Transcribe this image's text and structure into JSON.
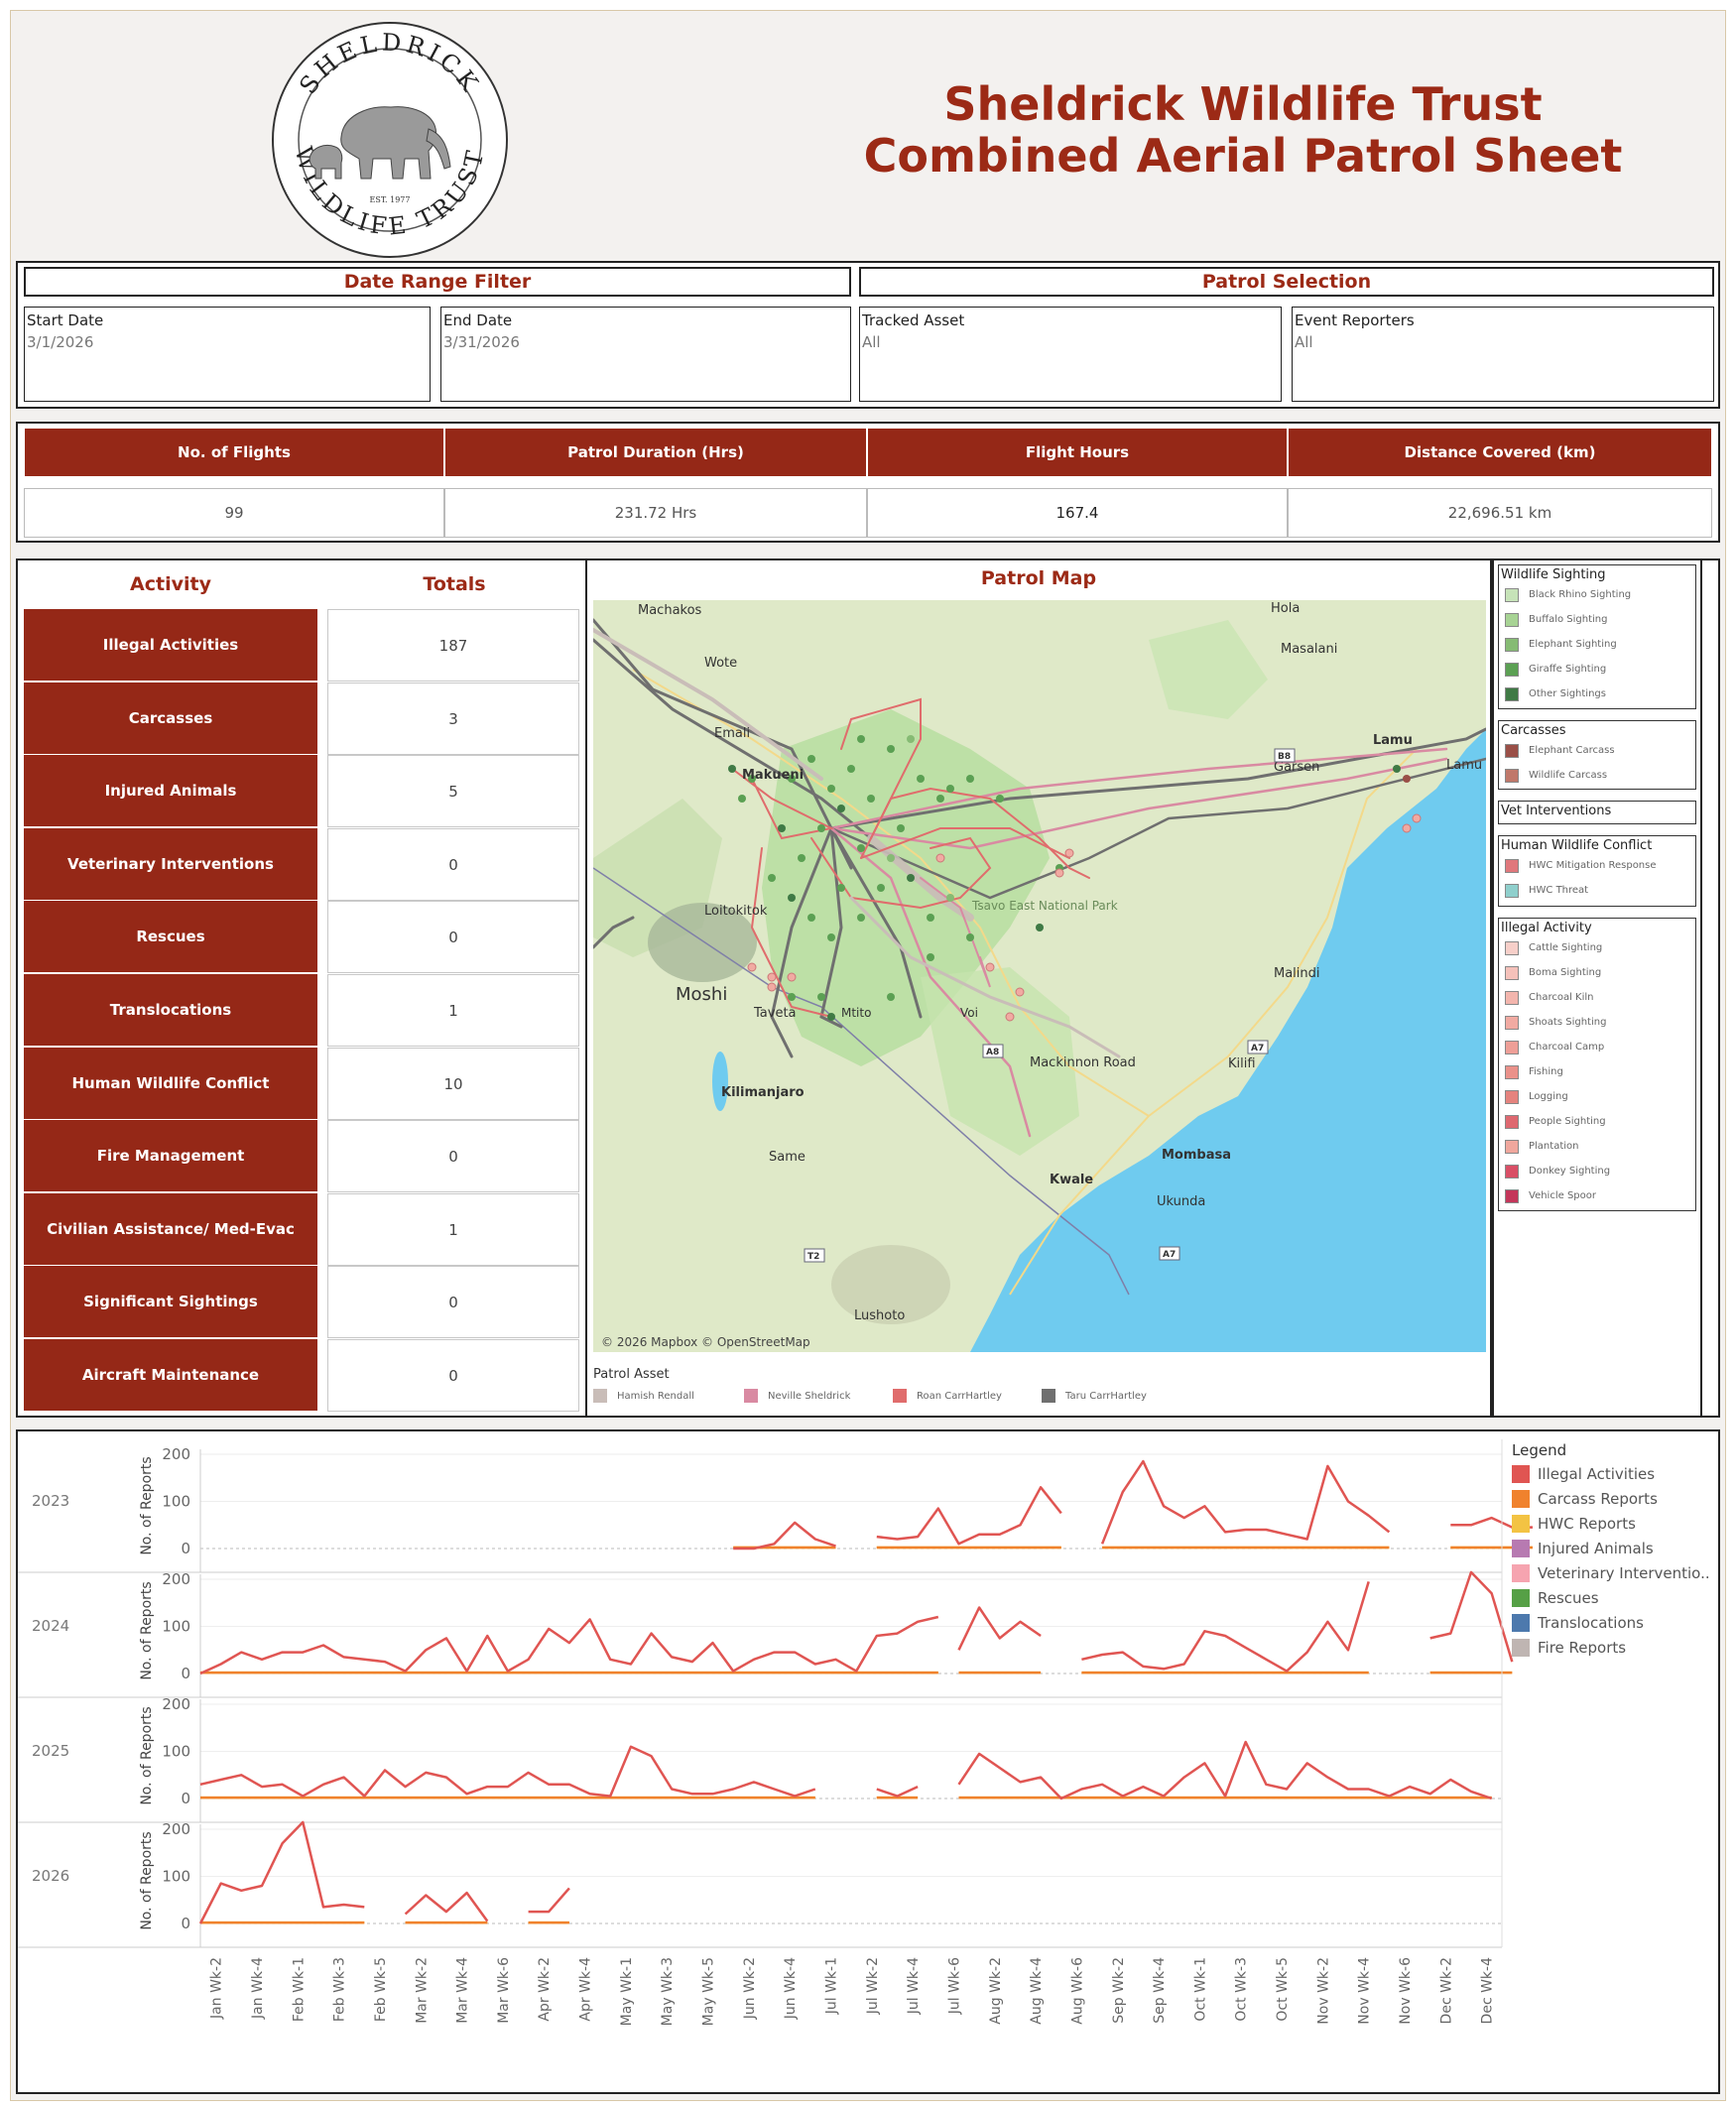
{
  "header": {
    "title_line1": "Sheldrick Wildlife Trust",
    "title_line2": "Combined Aerial Patrol Sheet",
    "logo_text_top": "SHELDRICK",
    "logo_text_bottom": "WILDLIFE TRUST",
    "logo_est": "EST. 1977"
  },
  "date_filter": {
    "title": "Date Range Filter",
    "start_label": "Start Date",
    "start_value": "3/1/2026",
    "end_label": "End Date",
    "end_value": "3/31/2026"
  },
  "patrol_selection": {
    "title": "Patrol Selection",
    "asset_label": "Tracked Asset",
    "asset_value": "All",
    "reporters_label": "Event Reporters",
    "reporters_value": "All"
  },
  "kpis": [
    {
      "label": "No. of Flights",
      "value": "99"
    },
    {
      "label": "Patrol Duration (Hrs)",
      "value": "231.72 Hrs"
    },
    {
      "label": "Flight Hours",
      "value": "167.4"
    },
    {
      "label": "Distance Covered (km)",
      "value": "22,696.51 km"
    }
  ],
  "activity_table": {
    "col_activity": "Activity",
    "col_totals": "Totals",
    "rows": [
      {
        "label": "Illegal Activities",
        "total": "187"
      },
      {
        "label": "Carcasses",
        "total": "3"
      },
      {
        "label": "Injured Animals",
        "total": "5"
      },
      {
        "label": "Veterinary Interventions",
        "total": "0"
      },
      {
        "label": "Rescues",
        "total": "0"
      },
      {
        "label": "Translocations",
        "total": "1"
      },
      {
        "label": "Human Wildlife Conflict",
        "total": "10"
      },
      {
        "label": "Fire Management",
        "total": "0"
      },
      {
        "label": "Civilian Assistance/ Med-Evac",
        "total": "1"
      },
      {
        "label": "Significant Sightings",
        "total": "0"
      },
      {
        "label": "Aircraft Maintenance",
        "total": "0"
      }
    ]
  },
  "map": {
    "title": "Patrol Map",
    "attribution": "© 2026 Mapbox © OpenStreetMap",
    "places": [
      "Machakos",
      "Wote",
      "Emali",
      "Makueni",
      "Loitokitok",
      "Moshi",
      "Taveta",
      "Kilimanjaro",
      "Same",
      "Mackinnon Road",
      "Kwale",
      "Mombasa",
      "Ukunda",
      "Lushoto",
      "Malindi",
      "Kilifi",
      "Garsen",
      "Lamu",
      "Lamu",
      "Hola",
      "Masalani",
      "Tsavo East National Park",
      "Mtito",
      "Voi"
    ],
    "road_shields": [
      "B8",
      "A7",
      "A7",
      "A8",
      "T2"
    ],
    "asset_title": "Patrol Asset",
    "assets": [
      {
        "name": "Hamish Rendall",
        "color": "#c9bdb8"
      },
      {
        "name": "Neville Sheldrick",
        "color": "#d98aa2"
      },
      {
        "name": "Roan CarrHartley",
        "color": "#e06c6c"
      },
      {
        "name": "Taru CarrHartley",
        "color": "#6f6f6f"
      }
    ]
  },
  "map_legend": [
    {
      "title": "Wildlife Sighting",
      "items": [
        {
          "label": "Black Rhino Sighting",
          "color": "#c6e3b8"
        },
        {
          "label": "Buffalo Sighting",
          "color": "#a7d394"
        },
        {
          "label": "Elephant Sighting",
          "color": "#86bb74"
        },
        {
          "label": "Giraffe Sighting",
          "color": "#5ba053"
        },
        {
          "label": "Other Sightings",
          "color": "#3f7a45"
        }
      ]
    },
    {
      "title": "Carcasses",
      "items": [
        {
          "label": "Elephant Carcass",
          "color": "#9a4f47"
        },
        {
          "label": "Wildlife Carcass",
          "color": "#c0786a"
        }
      ]
    },
    {
      "title": "Vet Interventions",
      "items": []
    },
    {
      "title": "Human Wildlife Conflict",
      "items": [
        {
          "label": "HWC Mitigation Response",
          "color": "#e0787c"
        },
        {
          "label": "HWC Threat",
          "color": "#8fcfcc"
        }
      ]
    },
    {
      "title": "Illegal Activity",
      "items": [
        {
          "label": "Cattle Sighting",
          "color": "#f7cfc9"
        },
        {
          "label": "Boma Sighting",
          "color": "#f5c1ba"
        },
        {
          "label": "Charcoal Kiln",
          "color": "#f3b5ad"
        },
        {
          "label": "Shoats Sighting",
          "color": "#f1aaa2"
        },
        {
          "label": "Charcoal Camp",
          "color": "#ee9f97"
        },
        {
          "label": "Fishing",
          "color": "#ea918a"
        },
        {
          "label": "Logging",
          "color": "#e5837e"
        },
        {
          "label": "People Sighting",
          "color": "#de6870"
        },
        {
          "label": "Plantation",
          "color": "#f0a79d"
        },
        {
          "label": "Donkey Sighting",
          "color": "#d94f66"
        },
        {
          "label": "Vehicle Spoor",
          "color": "#c4365a"
        }
      ]
    }
  ],
  "timeseries": {
    "y_axis_label": "No. of Reports",
    "y_ticks": [
      "200",
      "100",
      "0"
    ],
    "legend_title": "Legend",
    "legend": [
      {
        "label": "Illegal Activities",
        "color": "#e05552"
      },
      {
        "label": "Carcass Reports",
        "color": "#f0822d"
      },
      {
        "label": "HWC Reports",
        "color": "#f3c343"
      },
      {
        "label": "Injured Animals",
        "color": "#b77ab1"
      },
      {
        "label": "Veterinary Interventio..",
        "color": "#f6a4b0"
      },
      {
        "label": "Rescues",
        "color": "#56a046"
      },
      {
        "label": "Translocations",
        "color": "#4d79ad"
      },
      {
        "label": "Fire Reports",
        "color": "#bfb5b2"
      }
    ],
    "x_ticks": [
      "Jan Wk-2",
      "Jan Wk-4",
      "Feb Wk-1",
      "Feb Wk-3",
      "Feb Wk-5",
      "Mar Wk-2",
      "Mar Wk-4",
      "Mar Wk-6",
      "Apr Wk-2",
      "Apr Wk-4",
      "May Wk-1",
      "May Wk-3",
      "May Wk-5",
      "Jun Wk-2",
      "Jun Wk-4",
      "Jul Wk-1",
      "Jul Wk-2",
      "Jul Wk-4",
      "Jul Wk-6",
      "Aug Wk-2",
      "Aug Wk-4",
      "Aug Wk-6",
      "Sep Wk-2",
      "Sep Wk-4",
      "Oct Wk-1",
      "Oct Wk-3",
      "Oct Wk-5",
      "Nov Wk-2",
      "Nov Wk-4",
      "Nov Wk-6",
      "Dec Wk-2",
      "Dec Wk-4"
    ]
  },
  "chart_data": {
    "type": "line",
    "y_range": [
      0,
      220
    ],
    "x_weeks_per_year": 64,
    "panels": [
      {
        "year": "2023",
        "segments": [
          {
            "start": 26,
            "illegal": [
              0,
              0,
              10,
              55,
              20,
              5
            ]
          },
          {
            "start": 33,
            "illegal": [
              25,
              20,
              25,
              85,
              10,
              30,
              30,
              50,
              130,
              75
            ]
          },
          {
            "start": 44,
            "illegal": [
              10,
              120,
              185,
              90,
              65,
              90,
              35,
              40,
              40,
              30,
              20,
              175,
              100,
              70,
              35
            ]
          },
          {
            "start": 61,
            "illegal": [
              50,
              50,
              65,
              45,
              45
            ]
          }
        ]
      },
      {
        "year": "2024",
        "segments": [
          {
            "start": 0,
            "illegal": [
              0,
              20,
              45,
              30,
              45,
              45,
              60,
              35,
              30,
              25,
              5,
              50,
              75,
              5,
              80,
              5,
              30,
              95,
              65,
              115,
              30,
              20,
              85,
              35,
              25,
              65,
              5,
              30,
              45,
              45,
              20,
              30,
              5,
              80,
              85,
              110,
              120
            ]
          },
          {
            "start": 37,
            "illegal": [
              50,
              140,
              75,
              110,
              80
            ]
          },
          {
            "start": 43,
            "illegal": [
              30,
              40,
              45,
              15,
              10,
              20,
              90,
              80,
              55,
              30,
              5,
              45,
              110,
              50,
              195
            ]
          },
          {
            "start": 60,
            "illegal": [
              75,
              85,
              215,
              170,
              25
            ]
          }
        ]
      },
      {
        "year": "2025",
        "segments": [
          {
            "start": 0,
            "illegal": [
              30,
              40,
              50,
              25,
              30,
              5,
              30,
              45,
              5,
              60,
              25,
              55,
              45,
              10,
              25,
              25,
              55,
              30,
              30,
              10,
              5,
              110,
              90,
              20,
              10,
              10,
              20,
              35,
              20,
              5,
              20
            ]
          },
          {
            "start": 33,
            "illegal": [
              20,
              5,
              25
            ]
          },
          {
            "start": 37,
            "illegal": [
              30,
              95,
              65,
              35,
              45,
              0,
              20,
              30,
              5,
              25,
              5,
              45,
              75,
              5,
              120,
              30,
              20,
              75,
              45,
              20,
              20,
              5,
              25,
              10,
              40,
              15,
              0
            ]
          }
        ]
      },
      {
        "year": "2026",
        "segments": [
          {
            "start": 0,
            "illegal": [
              0,
              85,
              70,
              80,
              170,
              215,
              35,
              40,
              35
            ]
          },
          {
            "start": 10,
            "illegal": [
              20,
              60,
              25,
              65,
              5
            ]
          },
          {
            "start": 16,
            "illegal": [
              25,
              25,
              75
            ]
          }
        ]
      }
    ]
  }
}
